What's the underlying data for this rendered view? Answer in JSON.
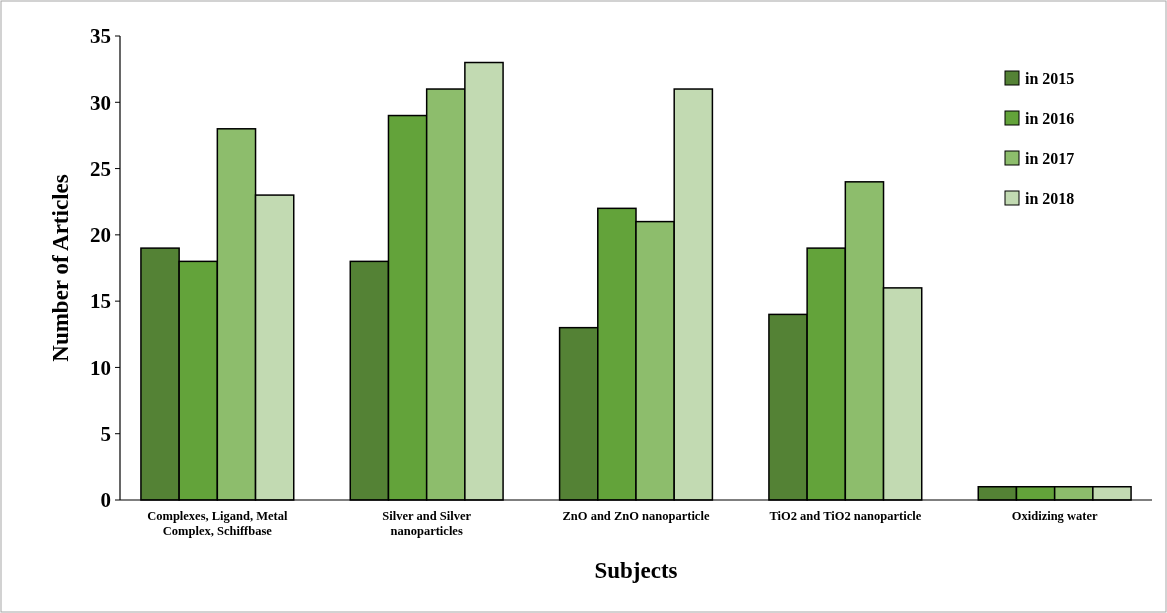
{
  "chart_data": {
    "type": "bar",
    "xlabel": "Subjects",
    "ylabel": "Number of Articles",
    "categories": [
      "Complexes, Ligand, Metal Complex, Schiffbase",
      "Silver and Silver nanoparticles",
      "ZnO and ZnO nanoparticle",
      "TiO2 and TiO2 nanoparticle",
      "Oxidizing water"
    ],
    "series": [
      {
        "name": "in 2015",
        "color": "#548235",
        "values": [
          19,
          18,
          13,
          14,
          1
        ]
      },
      {
        "name": "in 2016",
        "color": "#63a33a",
        "values": [
          18,
          29,
          22,
          19,
          1
        ]
      },
      {
        "name": "in 2017",
        "color": "#8dbd6c",
        "values": [
          28,
          31,
          21,
          24,
          1
        ]
      },
      {
        "name": "in 2018",
        "color": "#c2dab2",
        "values": [
          23,
          33,
          31,
          16,
          1
        ]
      }
    ],
    "ylim": [
      0,
      35
    ],
    "yticks": [
      0,
      5,
      10,
      15,
      20,
      25,
      30,
      35
    ],
    "grid": false,
    "legend": "top right"
  }
}
